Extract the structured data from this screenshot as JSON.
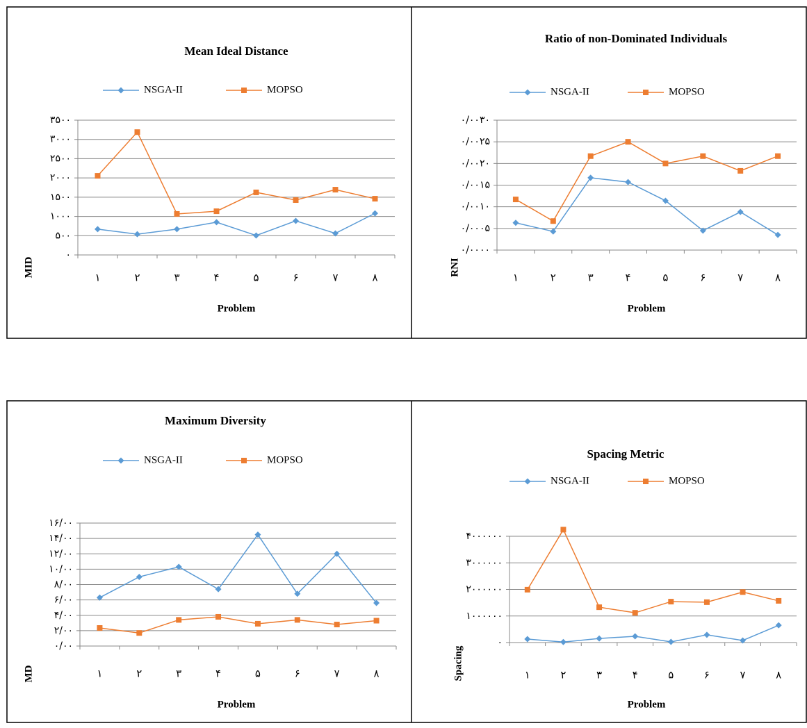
{
  "chart_data": [
    {
      "type": "line",
      "title": "Mean Ideal Distance",
      "x_label": "Problem",
      "y_label": "MID",
      "categories": [
        "۱",
        "۲",
        "۳",
        "۴",
        "۵",
        "۶",
        "۷",
        "۸"
      ],
      "ylim": [
        0,
        3500
      ],
      "yticks": [
        {
          "value": 0,
          "label": "۰"
        },
        {
          "value": 500,
          "label": "۵۰۰"
        },
        {
          "value": 1000,
          "label": "۱۰۰۰"
        },
        {
          "value": 1500,
          "label": "۱۵۰۰"
        },
        {
          "value": 2000,
          "label": "۲۰۰۰"
        },
        {
          "value": 2500,
          "label": "۲۵۰۰"
        },
        {
          "value": 3000,
          "label": "۳۰۰۰"
        },
        {
          "value": 3500,
          "label": "۳۵۰۰"
        }
      ],
      "grid": true,
      "series": [
        {
          "name": "NSGA-II",
          "color": "#5b9bd5",
          "values": [
            670,
            540,
            670,
            850,
            505,
            885,
            560,
            1080
          ]
        },
        {
          "name": "MOPSO",
          "color": "#ed7d31",
          "values": [
            2055,
            3190,
            1065,
            1135,
            1625,
            1425,
            1695,
            1460
          ]
        }
      ]
    },
    {
      "type": "line",
      "title": "Ratio of non-Dominated Individuals",
      "x_label": "Problem",
      "y_label": "RNI",
      "categories": [
        "۱",
        "۲",
        "۳",
        "۴",
        "۵",
        "۶",
        "۷",
        "۸"
      ],
      "ylim": [
        0,
        0.003
      ],
      "yticks": [
        {
          "value": 0,
          "label": "۰/۰۰۰۰"
        },
        {
          "value": 0.0005,
          "label": "۰/۰۰۰۵"
        },
        {
          "value": 0.001,
          "label": "۰/۰۰۱۰"
        },
        {
          "value": 0.0015,
          "label": "۰/۰۰۱۵"
        },
        {
          "value": 0.002,
          "label": "۰/۰۰۲۰"
        },
        {
          "value": 0.0025,
          "label": "۰/۰۰۲۵"
        },
        {
          "value": 0.003,
          "label": "۰/۰۰۳۰"
        }
      ],
      "grid": true,
      "series": [
        {
          "name": "NSGA-II",
          "color": "#5b9bd5",
          "values": [
            0.00063,
            0.00043,
            0.00167,
            0.00157,
            0.00114,
            0.00045,
            0.00088,
            0.00035
          ]
        },
        {
          "name": "MOPSO",
          "color": "#ed7d31",
          "values": [
            0.00117,
            0.00067,
            0.00217,
            0.0025,
            0.002,
            0.00217,
            0.00183,
            0.00217
          ]
        }
      ]
    },
    {
      "type": "line",
      "title": "Maximum Diversity",
      "x_label": "Problem",
      "y_label": "MD",
      "categories": [
        "۱",
        "۲",
        "۳",
        "۴",
        "۵",
        "۶",
        "۷",
        "۸"
      ],
      "ylim": [
        0,
        16
      ],
      "yticks": [
        {
          "value": 0,
          "label": "۰/۰۰"
        },
        {
          "value": 2,
          "label": "۲/۰۰"
        },
        {
          "value": 4,
          "label": "۴/۰۰"
        },
        {
          "value": 6,
          "label": "۶/۰۰"
        },
        {
          "value": 8,
          "label": "۸/۰۰"
        },
        {
          "value": 10,
          "label": "۱۰/۰۰"
        },
        {
          "value": 12,
          "label": "۱۲/۰۰"
        },
        {
          "value": 14,
          "label": "۱۴/۰۰"
        },
        {
          "value": 16,
          "label": "۱۶/۰۰"
        }
      ],
      "grid": true,
      "series": [
        {
          "name": "NSGA-II",
          "color": "#5b9bd5",
          "values": [
            6.3,
            9.0,
            10.3,
            7.4,
            14.5,
            6.8,
            12.0,
            5.6
          ]
        },
        {
          "name": "MOPSO",
          "color": "#ed7d31",
          "values": [
            2.35,
            1.7,
            3.4,
            3.8,
            2.9,
            3.4,
            2.8,
            3.3
          ]
        }
      ]
    },
    {
      "type": "line",
      "title": "Spacing Metric",
      "x_label": "Problem",
      "y_label": "Spacing",
      "categories": [
        "۱",
        "۲",
        "۳",
        "۴",
        "۵",
        "۶",
        "۷",
        "۸"
      ],
      "ylim": [
        0,
        4000000
      ],
      "yticks": [
        {
          "value": 0,
          "label": "۰"
        },
        {
          "value": 1000000,
          "label": "۱۰۰۰۰۰۰"
        },
        {
          "value": 2000000,
          "label": "۲۰۰۰۰۰۰"
        },
        {
          "value": 3000000,
          "label": "۳۰۰۰۰۰۰"
        },
        {
          "value": 4000000,
          "label": "۴۰۰۰۰۰۰"
        }
      ],
      "grid": true,
      "series": [
        {
          "name": "NSGA-II",
          "color": "#5b9bd5",
          "values": [
            130000,
            20000,
            155000,
            235000,
            26000,
            290000,
            80000,
            650000
          ]
        },
        {
          "name": "MOPSO",
          "color": "#ed7d31",
          "values": [
            1990000,
            4250000,
            1330000,
            1120000,
            1540000,
            1520000,
            1900000,
            1570000
          ]
        }
      ]
    }
  ]
}
